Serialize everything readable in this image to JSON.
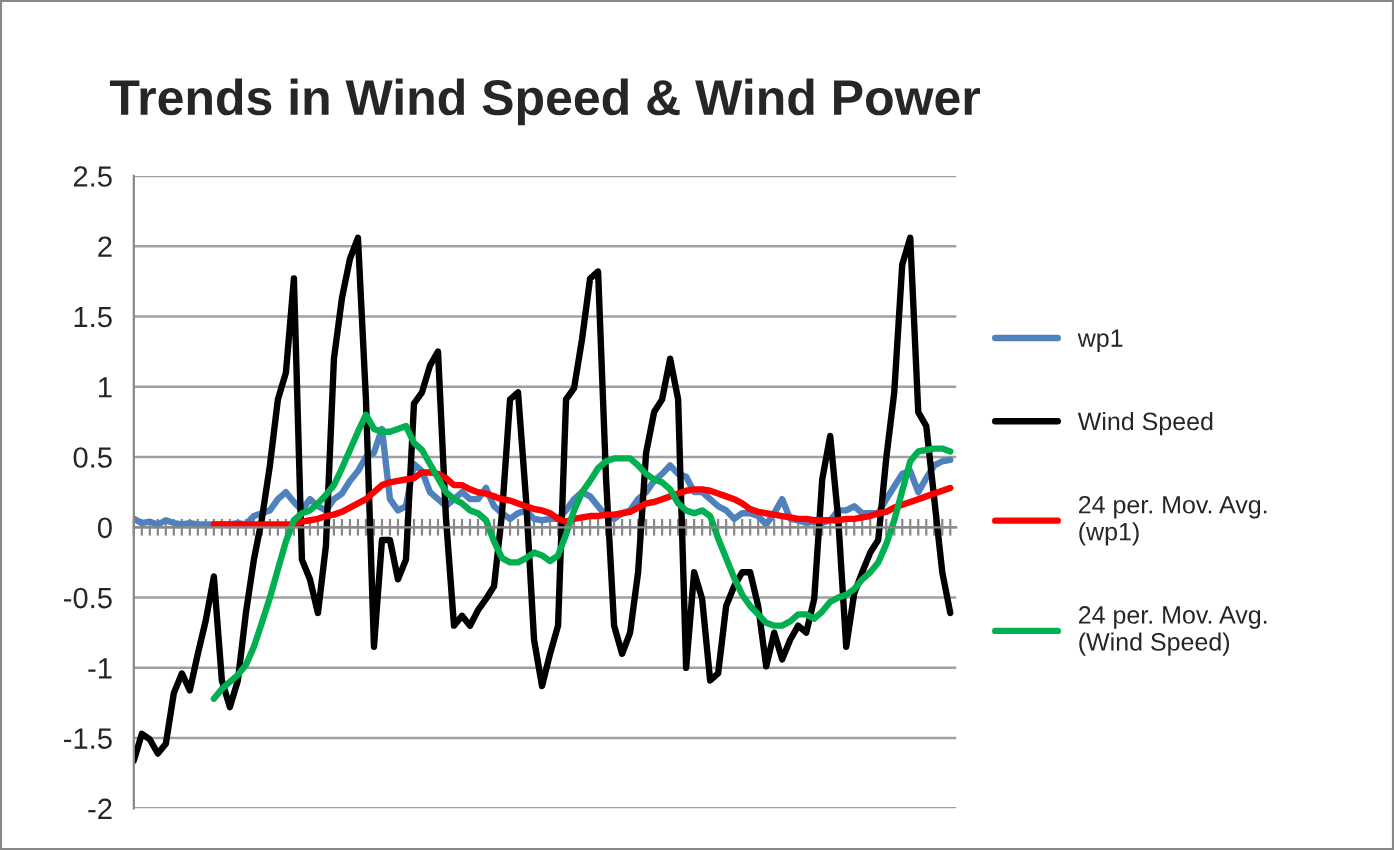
{
  "chart_data": {
    "type": "line",
    "title": "Trends in Wind Speed & Wind Power",
    "categories": [
      null,
      null,
      null,
      null,
      null,
      null,
      null,
      null,
      null,
      null,
      null,
      null,
      null,
      null,
      null,
      null,
      null,
      null,
      null,
      null,
      null,
      null,
      null,
      null,
      null,
      null,
      null,
      null,
      null,
      null,
      null,
      null,
      null,
      null,
      null,
      null,
      null,
      null,
      null,
      null,
      null,
      null,
      null,
      null,
      null,
      null,
      null,
      null,
      null,
      null,
      null,
      null,
      null,
      null,
      null,
      null,
      null,
      null,
      null,
      null,
      null,
      null,
      null,
      null,
      null,
      null,
      null,
      null,
      null,
      null,
      null,
      null,
      null,
      null,
      null,
      null,
      null,
      null,
      null,
      null,
      null,
      null,
      null,
      null,
      null,
      null,
      null,
      null,
      null,
      null,
      null,
      null,
      null,
      null,
      null,
      null,
      null,
      null,
      null,
      null,
      null,
      null,
      null
    ],
    "series": [
      {
        "name": "wp1",
        "color": "#4f81bd",
        "values": [
          0.06,
          0.03,
          0.04,
          0.02,
          0.05,
          0.03,
          0.02,
          0.03,
          0.02,
          0.02,
          0.02,
          0.02,
          0.02,
          0.03,
          0.02,
          0.08,
          0.1,
          0.12,
          0.2,
          0.25,
          0.18,
          0.12,
          0.2,
          0.15,
          0.12,
          0.2,
          0.24,
          0.33,
          0.4,
          0.5,
          0.53,
          0.7,
          0.2,
          0.12,
          0.15,
          0.45,
          0.4,
          0.25,
          0.2,
          0.15,
          0.2,
          0.25,
          0.2,
          0.2,
          0.28,
          0.15,
          0.1,
          0.06,
          0.1,
          0.12,
          0.06,
          0.05,
          0.06,
          0.06,
          0.12,
          0.2,
          0.25,
          0.22,
          0.15,
          0.08,
          0.06,
          0.1,
          0.12,
          0.2,
          0.25,
          0.33,
          0.38,
          0.44,
          0.38,
          0.36,
          0.25,
          0.25,
          0.2,
          0.15,
          0.12,
          0.06,
          0.1,
          0.1,
          0.08,
          0.02,
          0.1,
          0.2,
          0.06,
          0.05,
          0.03,
          0.04,
          0.03,
          0.05,
          0.12,
          0.12,
          0.15,
          0.1,
          0.1,
          0.1,
          0.2,
          0.29,
          0.38,
          0.4,
          0.25,
          0.35,
          0.44,
          0.47,
          0.48
        ]
      },
      {
        "name": "Wind Speed",
        "color": "#000000",
        "values": [
          -1.66,
          -1.47,
          -1.51,
          -1.61,
          -1.54,
          -1.18,
          -1.04,
          -1.16,
          -0.9,
          -0.66,
          -0.35,
          -1.09,
          -1.28,
          -1.09,
          -0.61,
          -0.23,
          0.06,
          0.44,
          0.91,
          1.1,
          1.77,
          -0.23,
          -0.37,
          -0.61,
          -0.13,
          1.2,
          1.63,
          1.91,
          2.06,
          0.91,
          -0.85,
          -0.09,
          -0.09,
          -0.37,
          -0.23,
          0.88,
          0.96,
          1.15,
          1.25,
          0.06,
          -0.7,
          -0.63,
          -0.7,
          -0.59,
          -0.51,
          -0.42,
          0.1,
          0.91,
          0.96,
          0.2,
          -0.8,
          -1.13,
          -0.9,
          -0.7,
          0.91,
          0.99,
          1.34,
          1.77,
          1.82,
          0.34,
          -0.7,
          -0.9,
          -0.75,
          -0.32,
          0.53,
          0.82,
          0.91,
          1.2,
          0.91,
          -1.0,
          -0.32,
          -0.51,
          -1.09,
          -1.04,
          -0.56,
          -0.42,
          -0.32,
          -0.32,
          -0.56,
          -0.99,
          -0.75,
          -0.94,
          -0.8,
          -0.7,
          -0.75,
          -0.51,
          0.34,
          0.65,
          0.06,
          -0.85,
          -0.47,
          -0.32,
          -0.18,
          -0.09,
          0.49,
          0.96,
          1.87,
          2.06,
          0.82,
          0.72,
          0.2,
          -0.32,
          -0.61
        ]
      },
      {
        "name": "24 per. Mov. Avg.\n(wp1)",
        "color": "#ff0000",
        "values": [
          null,
          null,
          null,
          null,
          null,
          null,
          null,
          null,
          null,
          null,
          0.02,
          0.02,
          0.02,
          0.02,
          0.02,
          0.02,
          0.02,
          0.02,
          0.02,
          0.02,
          0.02,
          0.04,
          0.05,
          0.06,
          0.08,
          0.09,
          0.11,
          0.14,
          0.17,
          0.2,
          0.25,
          0.3,
          0.32,
          0.33,
          0.34,
          0.35,
          0.39,
          0.39,
          0.38,
          0.35,
          0.3,
          0.3,
          0.27,
          0.25,
          0.24,
          0.22,
          0.2,
          0.19,
          0.17,
          0.15,
          0.13,
          0.12,
          0.1,
          0.06,
          0.04,
          0.06,
          0.07,
          0.08,
          0.08,
          0.09,
          0.09,
          0.1,
          0.11,
          0.14,
          0.17,
          0.18,
          0.2,
          0.22,
          0.24,
          0.26,
          0.27,
          0.27,
          0.26,
          0.24,
          0.22,
          0.2,
          0.17,
          0.13,
          0.11,
          0.1,
          0.09,
          0.08,
          0.07,
          0.06,
          0.06,
          0.05,
          0.05,
          0.05,
          0.05,
          0.06,
          0.06,
          0.07,
          0.08,
          0.1,
          0.11,
          0.14,
          0.16,
          0.18,
          0.2,
          0.22,
          0.24,
          0.26,
          0.28
        ]
      },
      {
        "name": "24 per. Mov. Avg.\n(Wind Speed)",
        "color": "#00b050",
        "values": [
          null,
          null,
          null,
          null,
          null,
          null,
          null,
          null,
          null,
          null,
          -1.22,
          -1.15,
          -1.1,
          -1.05,
          -0.98,
          -0.85,
          -0.68,
          -0.5,
          -0.3,
          -0.1,
          0.05,
          0.1,
          0.12,
          0.17,
          0.23,
          0.3,
          0.42,
          0.55,
          0.68,
          0.8,
          0.7,
          0.68,
          0.68,
          0.7,
          0.72,
          0.6,
          0.55,
          0.45,
          0.35,
          0.25,
          0.2,
          0.17,
          0.12,
          0.1,
          0.05,
          -0.1,
          -0.22,
          -0.25,
          -0.25,
          -0.22,
          -0.18,
          -0.2,
          -0.24,
          -0.2,
          -0.05,
          0.12,
          0.25,
          0.33,
          0.42,
          0.47,
          0.49,
          0.49,
          0.49,
          0.44,
          0.38,
          0.34,
          0.32,
          0.27,
          0.17,
          0.12,
          0.1,
          0.12,
          0.08,
          -0.08,
          -0.22,
          -0.36,
          -0.48,
          -0.56,
          -0.62,
          -0.68,
          -0.7,
          -0.7,
          -0.67,
          -0.62,
          -0.62,
          -0.65,
          -0.6,
          -0.53,
          -0.5,
          -0.48,
          -0.44,
          -0.37,
          -0.32,
          -0.25,
          -0.12,
          0.05,
          0.26,
          0.47,
          0.54,
          0.55,
          0.56,
          0.56,
          0.54
        ]
      }
    ],
    "ylim": [
      -2,
      2.5
    ],
    "yticks": [
      -2,
      -1.5,
      -1,
      -0.5,
      0,
      0.5,
      1,
      1.5,
      2,
      2.5
    ],
    "grid": "y",
    "legend": "right",
    "marker": "none",
    "line_style": "solid"
  }
}
